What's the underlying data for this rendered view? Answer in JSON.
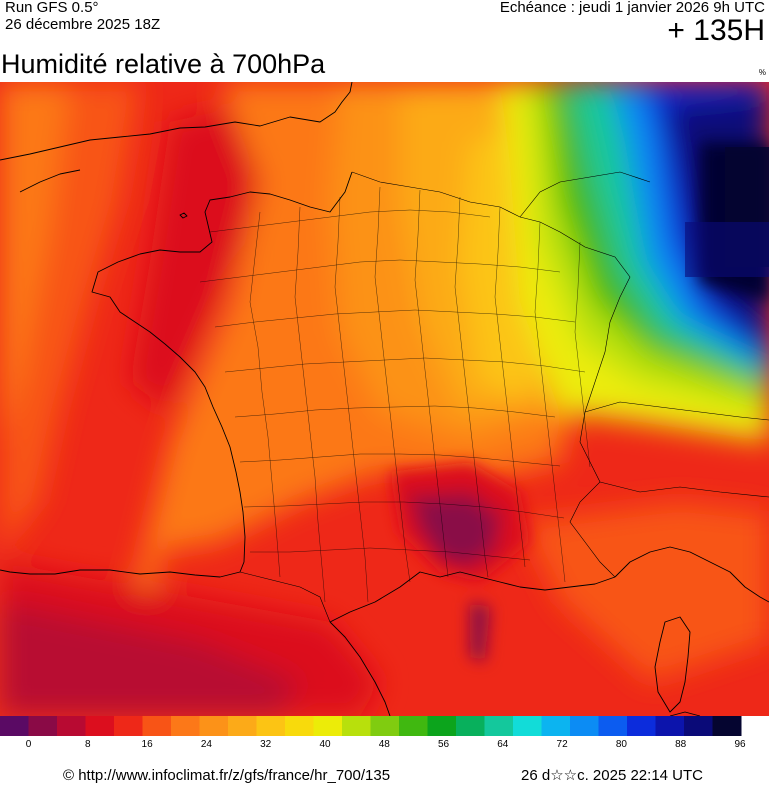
{
  "header": {
    "run_label": "Run GFS 0.5°",
    "run_date": "26 décembre 2025 18Z",
    "valid_label": "Echéance : jeudi 1 janvier 2026 9h UTC",
    "lead_time": "+ 135H"
  },
  "title": "Humidité relative à 700hPa",
  "unit": "%",
  "legend": {
    "colors": [
      "#5a0a64",
      "#8a0a46",
      "#b80a32",
      "#dc0e1e",
      "#ee2818",
      "#f85416",
      "#fc7818",
      "#fc9218",
      "#fcaa18",
      "#fcc414",
      "#f8da0c",
      "#ecec08",
      "#b8e00c",
      "#80cc10",
      "#40b810",
      "#0ca41c",
      "#08b05c",
      "#14c89c",
      "#12dcd8",
      "#0cb4f0",
      "#0c8cf4",
      "#0c5cf0",
      "#0c2cdc",
      "#0c14ac",
      "#0a0a78",
      "#050530"
    ],
    "ticks": [
      {
        "label": "0",
        "value": 0
      },
      {
        "label": "8",
        "value": 8
      },
      {
        "label": "16",
        "value": 16
      },
      {
        "label": "24",
        "value": 24
      },
      {
        "label": "32",
        "value": 32
      },
      {
        "label": "40",
        "value": 40
      },
      {
        "label": "48",
        "value": 48
      },
      {
        "label": "56",
        "value": 56
      },
      {
        "label": "64",
        "value": 64
      },
      {
        "label": "72",
        "value": 72
      },
      {
        "label": "80",
        "value": 80
      },
      {
        "label": "88",
        "value": 88
      },
      {
        "label": "96",
        "value": 96
      }
    ]
  },
  "footer": {
    "url": "© http://www.infoclimat.fr/z/gfs/france/hr_700/135",
    "timestamp": "26 d☆☆c. 2025 22:14 UTC"
  }
}
